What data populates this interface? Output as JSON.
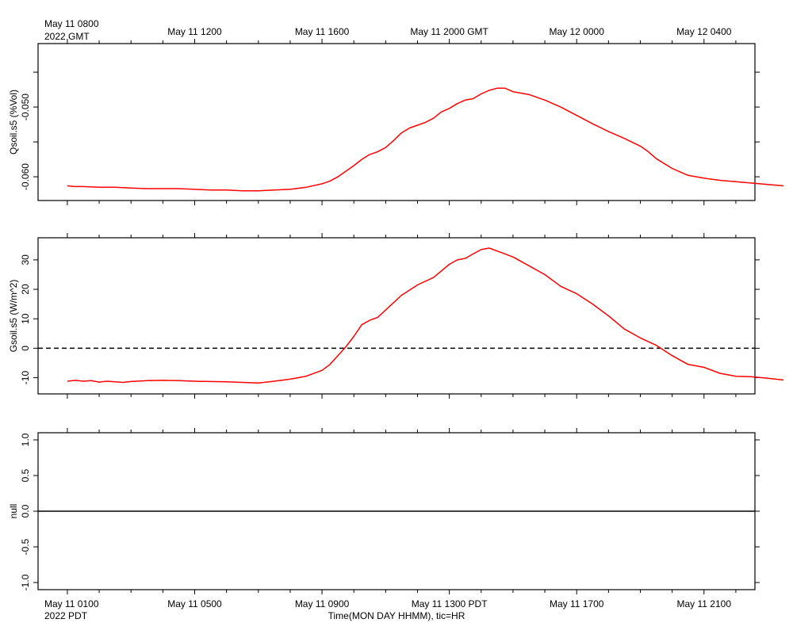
{
  "chart_data": [
    {
      "type": "line",
      "ylabel": "Qsoil.s5 (%Vol)",
      "ylim": [
        -0.0634,
        -0.0409
      ],
      "yticks": [
        -0.06,
        -0.055,
        -0.05,
        -0.045
      ],
      "ytick_labels": [
        "-0.060",
        "",
        "-0.050",
        ""
      ],
      "grid": false,
      "series": [
        {
          "color": "#ff0000",
          "x": [
            0.0,
            0.25,
            0.5,
            1.0,
            1.5,
            2.0,
            2.5,
            3.0,
            3.5,
            4.0,
            4.5,
            5.0,
            5.5,
            6.0,
            6.5,
            7.0,
            7.5,
            8.0,
            8.25,
            8.5,
            8.75,
            9.0,
            9.25,
            9.5,
            9.75,
            10.0,
            10.25,
            10.5,
            10.75,
            11.0,
            11.25,
            11.5,
            11.75,
            12.0,
            12.25,
            12.5,
            12.75,
            13.0,
            13.25,
            13.5,
            13.75,
            14.0,
            14.5,
            15.0,
            15.5,
            16.0,
            16.5,
            17.0,
            17.5,
            18.0,
            18.25,
            18.5,
            19.0,
            19.5,
            20.0,
            20.5,
            21.0,
            21.5,
            22.0,
            22.5
          ],
          "values": [
            -0.0613,
            -0.0614,
            -0.0614,
            -0.0615,
            -0.0615,
            -0.0616,
            -0.0617,
            -0.0617,
            -0.0617,
            -0.0618,
            -0.0619,
            -0.0619,
            -0.062,
            -0.062,
            -0.0619,
            -0.0618,
            -0.0615,
            -0.061,
            -0.0606,
            -0.06,
            -0.0592,
            -0.0584,
            -0.0575,
            -0.0568,
            -0.0564,
            -0.0558,
            -0.0548,
            -0.0537,
            -0.053,
            -0.0526,
            -0.0522,
            -0.0516,
            -0.0507,
            -0.0502,
            -0.0495,
            -0.049,
            -0.0488,
            -0.0481,
            -0.0476,
            -0.0473,
            -0.0473,
            -0.0478,
            -0.0482,
            -0.049,
            -0.05,
            -0.0512,
            -0.0524,
            -0.0535,
            -0.0545,
            -0.0556,
            -0.0564,
            -0.0574,
            -0.0588,
            -0.0598,
            -0.0602,
            -0.0605,
            -0.0607,
            -0.0609,
            -0.0611,
            -0.0613
          ]
        }
      ]
    },
    {
      "type": "line",
      "ylabel": "Gsoil.s5 (W/m^2)",
      "ylim": [
        -15.5,
        37.5
      ],
      "yticks": [
        -10,
        0,
        10,
        20,
        30
      ],
      "ytick_labels": [
        "-10",
        "0",
        "10",
        "20",
        "30"
      ],
      "zero_line": "dashed",
      "grid": false,
      "series": [
        {
          "color": "#ff0000",
          "x": [
            0.0,
            0.25,
            0.5,
            0.75,
            1.0,
            1.25,
            1.5,
            1.75,
            2.0,
            2.5,
            3.0,
            3.5,
            4.0,
            4.5,
            5.0,
            5.5,
            6.0,
            6.25,
            6.5,
            7.0,
            7.5,
            8.0,
            8.25,
            8.5,
            8.75,
            9.0,
            9.25,
            9.5,
            9.75,
            10.0,
            10.5,
            11.0,
            11.5,
            12.0,
            12.25,
            12.5,
            12.75,
            13.0,
            13.25,
            13.5,
            13.75,
            14.0,
            14.5,
            15.0,
            15.5,
            16.0,
            16.5,
            17.0,
            17.5,
            18.0,
            18.5,
            19.0,
            19.25,
            19.5,
            20.0,
            20.5,
            21.0,
            21.5,
            22.0,
            22.5
          ],
          "values": [
            -11.2,
            -10.9,
            -11.2,
            -11.0,
            -11.5,
            -11.2,
            -11.4,
            -11.6,
            -11.3,
            -11.0,
            -10.9,
            -11.0,
            -11.2,
            -11.3,
            -11.4,
            -11.6,
            -11.8,
            -11.5,
            -11.2,
            -10.5,
            -9.5,
            -7.5,
            -5.5,
            -2.5,
            0.5,
            4.0,
            8.0,
            9.5,
            10.5,
            13.0,
            18.0,
            21.5,
            24.0,
            28.5,
            30.0,
            30.5,
            32.0,
            33.5,
            34.0,
            33.0,
            32.0,
            31.0,
            28.0,
            25.0,
            21.0,
            18.5,
            15.0,
            11.0,
            6.5,
            3.5,
            1.0,
            -2.5,
            -4.0,
            -5.5,
            -6.5,
            -8.5,
            -9.5,
            -9.7,
            -10.2,
            -10.8
          ]
        }
      ]
    },
    {
      "type": "line",
      "ylabel": "null",
      "ylim": [
        -1.1,
        1.1
      ],
      "yticks": [
        -1.0,
        -0.5,
        0.0,
        0.5,
        1.0
      ],
      "ytick_labels": [
        "-1.0",
        "-0.5",
        "0.0",
        "0.5",
        "1.0"
      ],
      "zero_line": "solid",
      "grid": false,
      "series": []
    }
  ],
  "time_axis": {
    "x_range": [
      -0.92,
      21.6
    ],
    "label_hours": [
      0,
      4,
      8,
      12,
      16,
      20
    ],
    "top_labels": [
      "May 11 0800",
      "May 11 1200",
      "May 11 1600",
      "May 11 2000 GMT",
      "May 12 0000",
      "May 12 0400"
    ],
    "top_corner_label": "2022 GMT",
    "bottom_labels": [
      "May 11 0100",
      "May 11 0500",
      "May 11 0900",
      "May 11 1300 PDT",
      "May 11 1700",
      "May 11 2100"
    ],
    "bottom_corner_label": "2022 PDT",
    "xlabel": "Time(MON DAY HHMM), tic=HR"
  }
}
